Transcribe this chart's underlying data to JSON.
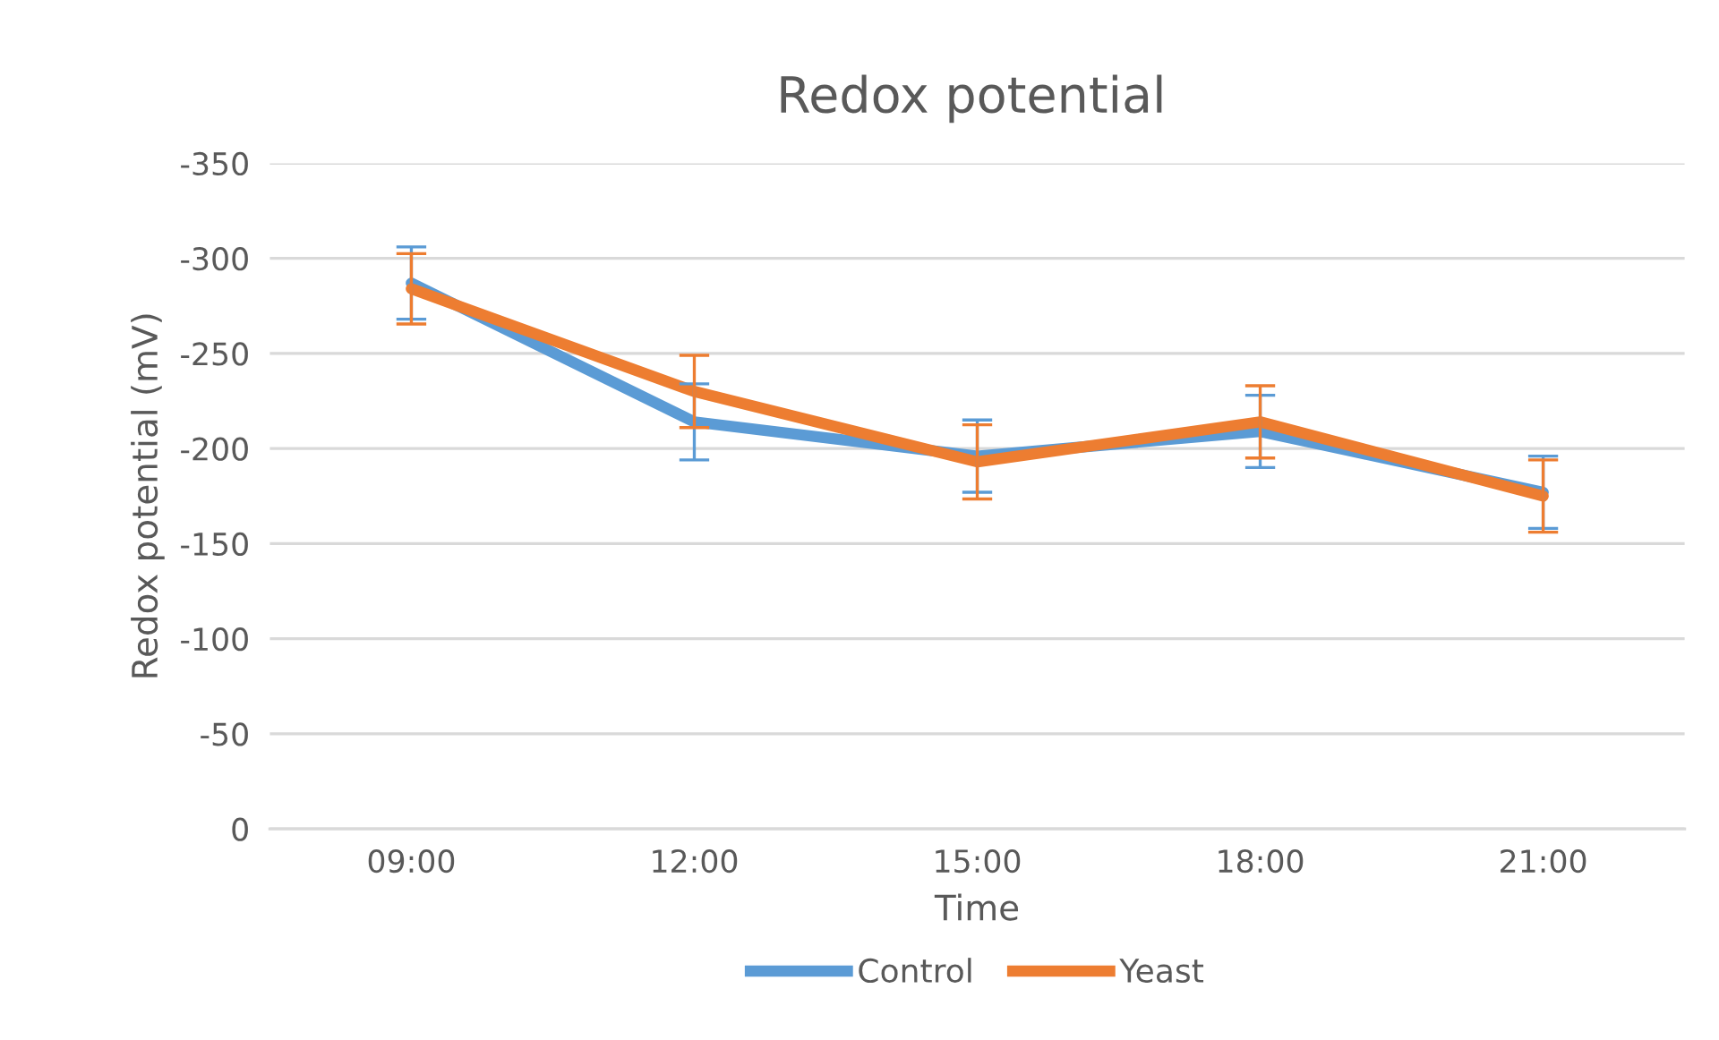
{
  "chart_data": {
    "type": "line",
    "title": "Redox potential",
    "xlabel": "Time",
    "ylabel": "Redox potential (mV)",
    "categories": [
      "09:00",
      "12:00",
      "15:00",
      "18:00",
      "21:00"
    ],
    "series": [
      {
        "name": "Control",
        "color": "#5b9bd5",
        "values": [
          -287,
          -214,
          -196,
          -209,
          -177
        ],
        "errors": [
          19,
          20,
          19,
          19,
          19
        ]
      },
      {
        "name": "Yeast",
        "color": "#ed7d31",
        "values": [
          -284,
          -230,
          -193,
          -214,
          -175
        ],
        "errors": [
          18.5,
          19,
          19.5,
          19,
          19
        ]
      }
    ],
    "ylim": [
      0,
      -350
    ],
    "yticks": [
      0,
      -50,
      -100,
      -150,
      -200,
      -250,
      -300,
      -350
    ],
    "grid": "y",
    "legend": "bottom",
    "marker": "none",
    "line_style": "solid"
  }
}
